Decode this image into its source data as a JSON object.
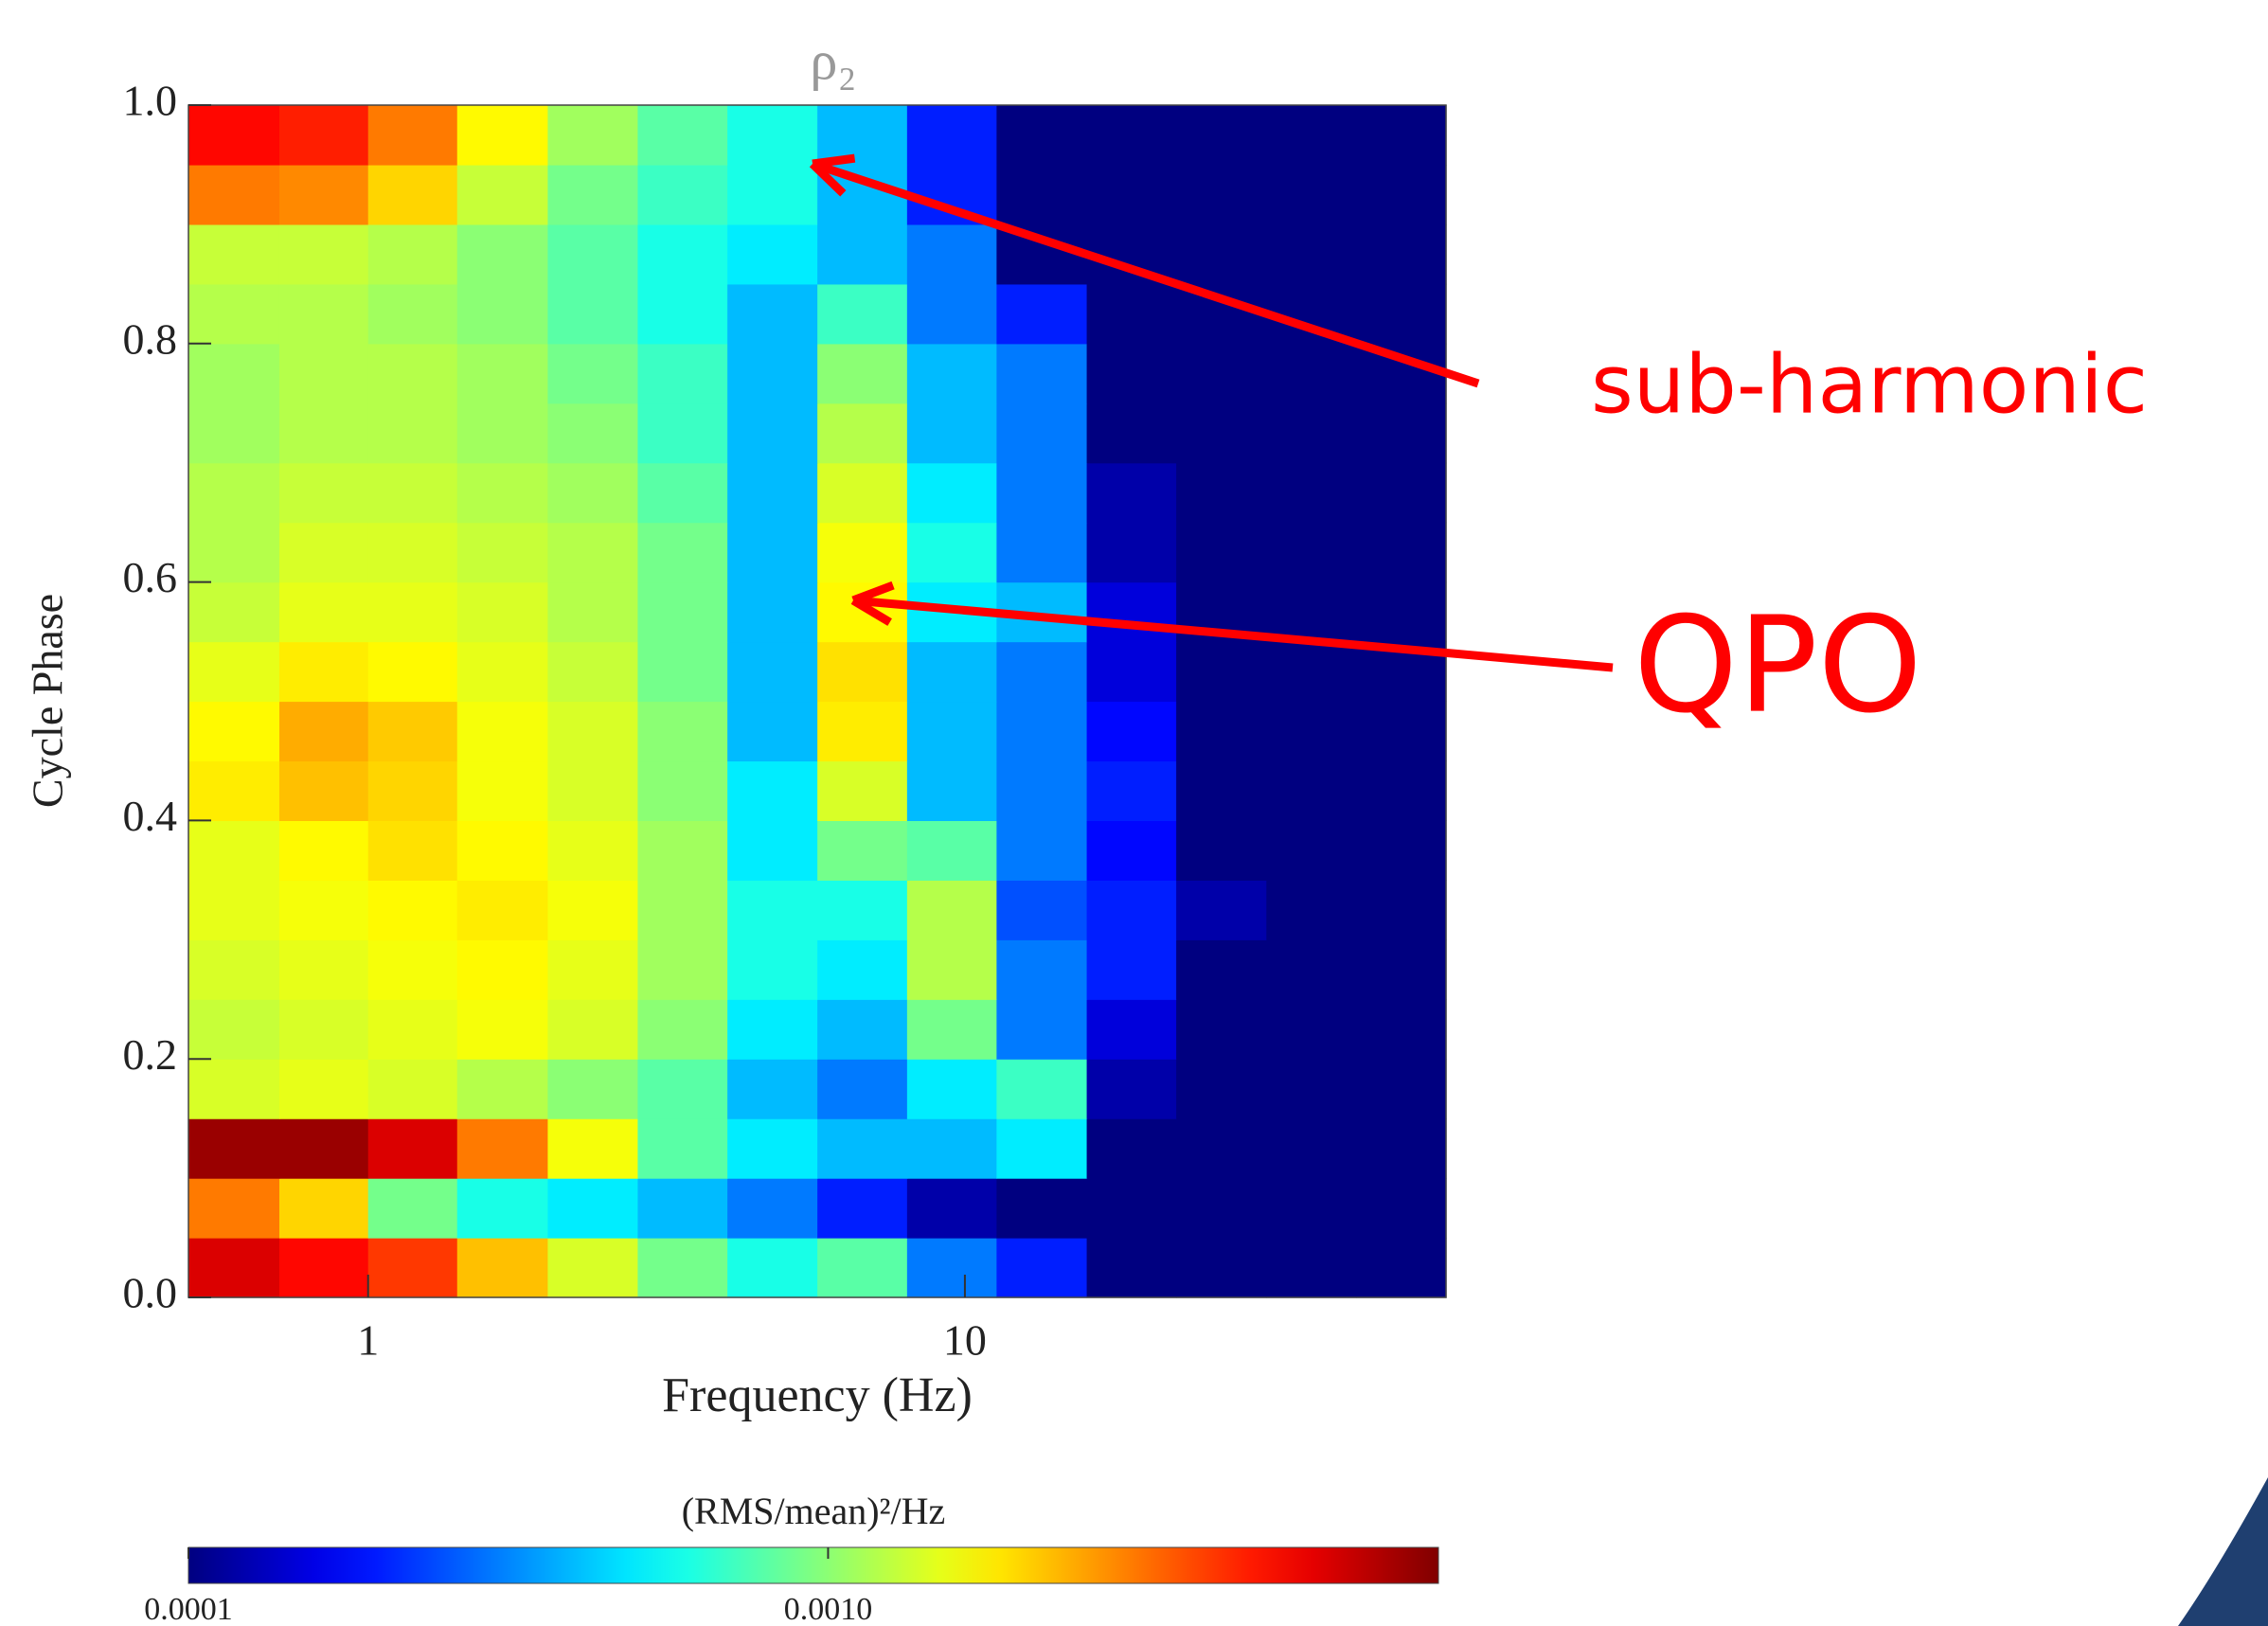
{
  "chart_data": {
    "type": "heatmap",
    "title": "ρ₂",
    "x_label": "Frequency (Hz)",
    "y_label": "Cycle Phase",
    "xscale": "log",
    "xlim": [
      0.5,
      64
    ],
    "xticks": [
      1,
      10
    ],
    "ylim": [
      0,
      1
    ],
    "yticks": [
      {
        "value": 0,
        "label": "0.0"
      },
      0.2,
      0.4,
      0.6,
      0.8,
      {
        "value": 1,
        "label": "1.0"
      }
    ],
    "x_edges": [
      0.5,
      0.71,
      1,
      1.41,
      2,
      2.83,
      4,
      5.66,
      8,
      11.3,
      16,
      22.6,
      32,
      45.3,
      64
    ],
    "y_edges": [
      0,
      0.05,
      0.1,
      0.15,
      0.2,
      0.25,
      0.3,
      0.35,
      0.4,
      0.45,
      0.5,
      0.55,
      0.6,
      0.65,
      0.7,
      0.75,
      0.8,
      0.85,
      0.9,
      0.95,
      1
    ],
    "values": [
      [
        0.006,
        0.005,
        0.004,
        0.0022,
        0.0014,
        0.0009,
        0.0006,
        0.0008,
        0.0003,
        0.0002,
        0.0001,
        0.0001,
        0.0001,
        0.0001
      ],
      [
        0.003,
        0.002,
        0.0009,
        0.0006,
        0.0005,
        0.0004,
        0.0003,
        0.0002,
        0.00012,
        0.0001,
        0.0001,
        0.0001,
        0.0001,
        0.0001
      ],
      [
        0.008,
        0.008,
        0.006,
        0.003,
        0.0016,
        0.0008,
        0.0005,
        0.0004,
        0.0004,
        0.0005,
        0.0001,
        0.0001,
        0.0001,
        0.0001
      ],
      [
        0.0014,
        0.0015,
        0.0014,
        0.0012,
        0.001,
        0.0008,
        0.0004,
        0.0003,
        0.0005,
        0.0007,
        0.00012,
        0.0001,
        0.0001,
        0.0001
      ],
      [
        0.0013,
        0.0014,
        0.0015,
        0.0016,
        0.0014,
        0.001,
        0.0005,
        0.0004,
        0.0009,
        0.0003,
        0.00015,
        0.0001,
        0.0001,
        0.0001
      ],
      [
        0.0014,
        0.0015,
        0.0016,
        0.0017,
        0.0015,
        0.0011,
        0.0006,
        0.0005,
        0.0012,
        0.0003,
        0.0002,
        0.0001,
        0.0001,
        0.0001
      ],
      [
        0.0015,
        0.0016,
        0.0017,
        0.0018,
        0.0016,
        0.0011,
        0.0006,
        0.0006,
        0.0012,
        0.00025,
        0.0002,
        0.00012,
        0.0001,
        0.0001
      ],
      [
        0.0015,
        0.0017,
        0.0019,
        0.0017,
        0.0015,
        0.0011,
        0.0005,
        0.0009,
        0.0008,
        0.0003,
        0.00018,
        0.0001,
        0.0001,
        0.0001
      ],
      [
        0.0018,
        0.0022,
        0.002,
        0.0016,
        0.0014,
        0.001,
        0.0005,
        0.0014,
        0.0004,
        0.0003,
        0.0002,
        0.0001,
        0.0001,
        0.0001
      ],
      [
        0.0017,
        0.0024,
        0.0021,
        0.0016,
        0.0014,
        0.001,
        0.0004,
        0.0018,
        0.0004,
        0.0003,
        0.00018,
        0.0001,
        0.0001,
        0.0001
      ],
      [
        0.0015,
        0.0018,
        0.0017,
        0.0015,
        0.0013,
        0.0009,
        0.0004,
        0.0019,
        0.0004,
        0.0003,
        0.00015,
        0.0001,
        0.0001,
        0.0001
      ],
      [
        0.0013,
        0.0015,
        0.0015,
        0.0014,
        0.0012,
        0.0009,
        0.0004,
        0.0017,
        0.0005,
        0.0004,
        0.00015,
        0.0001,
        0.0001,
        0.0001
      ],
      [
        0.0012,
        0.0014,
        0.0014,
        0.0013,
        0.0012,
        0.0009,
        0.0004,
        0.0016,
        0.0006,
        0.0003,
        0.00012,
        0.0001,
        0.0001,
        0.0001
      ],
      [
        0.0012,
        0.0013,
        0.0013,
        0.0012,
        0.0011,
        0.0008,
        0.0004,
        0.0014,
        0.0005,
        0.0003,
        0.00012,
        0.0001,
        0.0001,
        0.0001
      ],
      [
        0.0011,
        0.0012,
        0.0012,
        0.0011,
        0.001,
        0.0007,
        0.0004,
        0.0012,
        0.0004,
        0.0003,
        0.0001,
        0.0001,
        0.0001,
        0.0001
      ],
      [
        0.0011,
        0.0012,
        0.0012,
        0.0011,
        0.0009,
        0.0007,
        0.0004,
        0.001,
        0.0004,
        0.0003,
        0.0001,
        0.0001,
        0.0001,
        0.0001
      ],
      [
        0.0012,
        0.0012,
        0.0011,
        0.001,
        0.0008,
        0.0006,
        0.0004,
        0.0007,
        0.0003,
        0.0002,
        0.0001,
        0.0001,
        0.0001,
        0.0001
      ],
      [
        0.0013,
        0.0013,
        0.0012,
        0.001,
        0.0008,
        0.0006,
        0.0005,
        0.0004,
        0.0003,
        0.0001,
        0.0001,
        0.0001,
        0.0001,
        0.0001
      ],
      [
        0.003,
        0.0028,
        0.002,
        0.0013,
        0.0009,
        0.0007,
        0.0006,
        0.0004,
        0.0002,
        0.0001,
        0.0001,
        0.0001,
        0.0001,
        0.0001
      ],
      [
        0.005,
        0.0045,
        0.003,
        0.0017,
        0.0011,
        0.0008,
        0.0006,
        0.0004,
        0.0002,
        0.0001,
        0.0001,
        0.0001,
        0.0001,
        0.0001
      ]
    ],
    "colorbar": {
      "label": "(RMS/mean)²/Hz",
      "scale": "log",
      "colormap": "jet",
      "clim": [
        0.0001,
        0.009
      ],
      "ticks": [
        0.0001,
        {
          "value": 0.001,
          "label": "0.0010"
        }
      ]
    },
    "annotations": [
      {
        "text": "sub-harmonic",
        "color": "#ff0000"
      },
      {
        "text": "QPO",
        "color": "#ff0000"
      }
    ]
  }
}
